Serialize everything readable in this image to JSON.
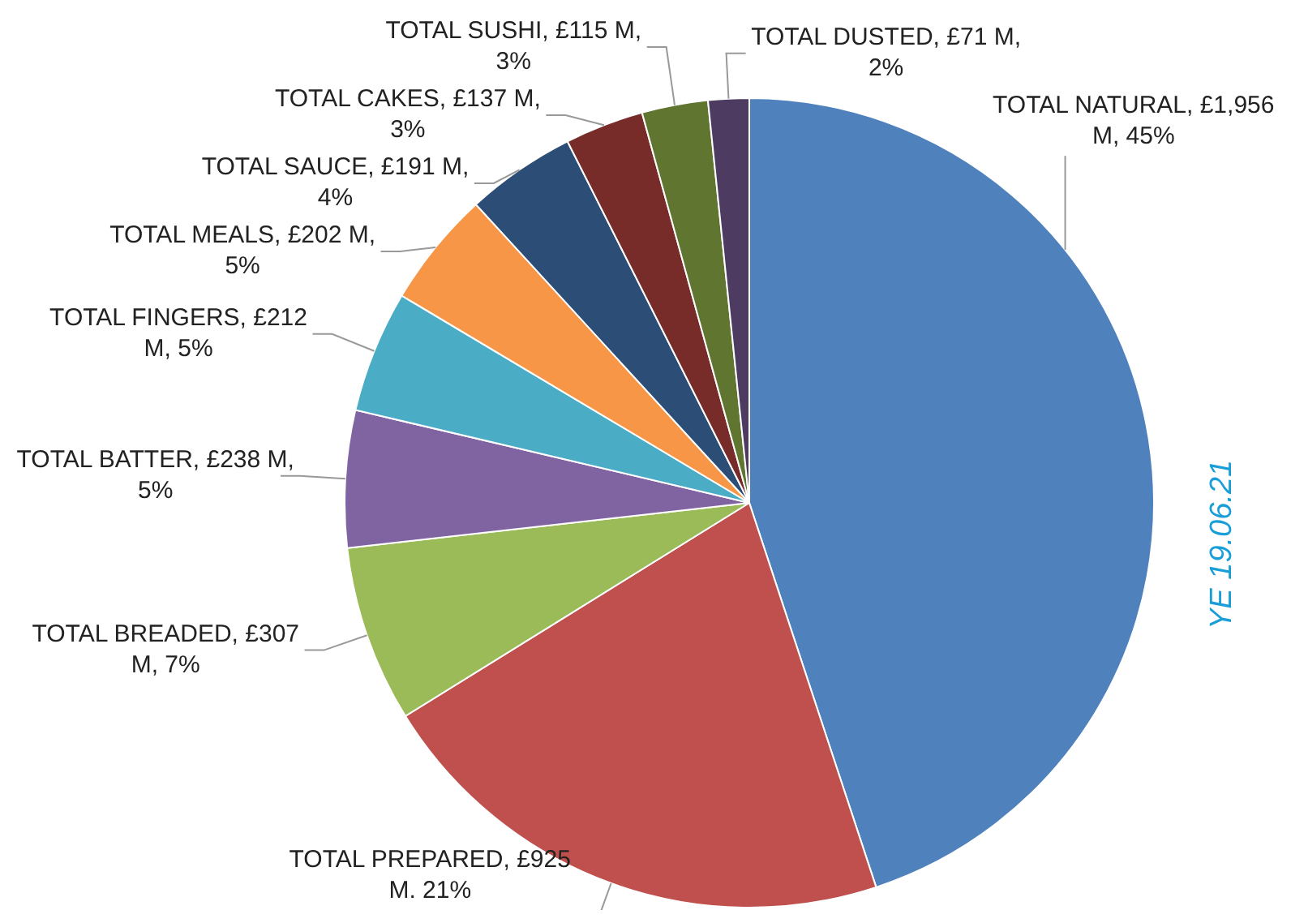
{
  "chart_data": {
    "type": "pie",
    "categories": [
      "TOTAL NATURAL",
      "TOTAL PREPARED",
      "TOTAL BREADED",
      "TOTAL BATTER",
      "TOTAL FINGERS",
      "TOTAL MEALS",
      "TOTAL SAUCE",
      "TOTAL CAKES",
      "TOTAL SUSHI",
      "TOTAL DUSTED"
    ],
    "values": [
      1956,
      925,
      307,
      238,
      212,
      202,
      191,
      137,
      115,
      71
    ],
    "value_labels": [
      "£1,956 M, 45%",
      "£925 M. 21%",
      "£307 M, 7%",
      "£238 M, 5%",
      "£212 M, 5%",
      "£202 M, 5%",
      "£191 M, 4%",
      "£137 M, 3%",
      "£115 M, 3%",
      "£71 M, 2%"
    ],
    "colors": [
      "#4f81bd",
      "#c0504d",
      "#9bbb59",
      "#8064a2",
      "#4bacc6",
      "#f79646",
      "#2c4d75",
      "#772c2a",
      "#5f7530",
      "#4d3b62"
    ],
    "annotations": [
      "YE 19.06.21"
    ],
    "legend": false
  }
}
